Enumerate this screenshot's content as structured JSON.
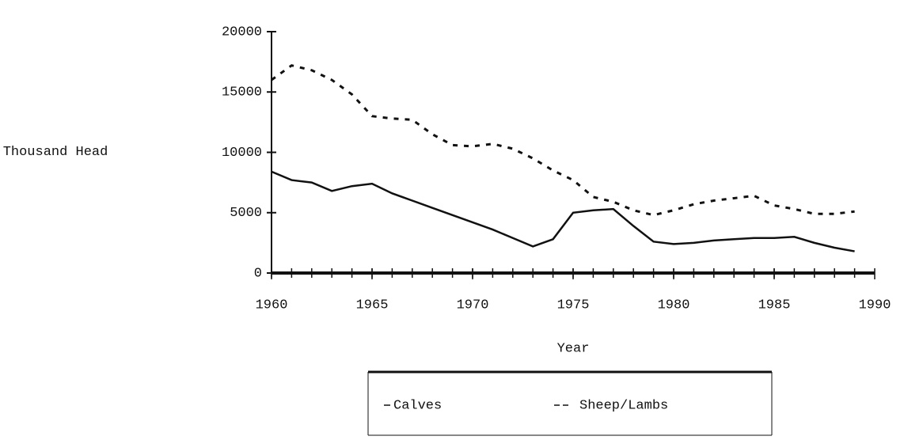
{
  "chart_data": {
    "type": "line",
    "x": [
      1960,
      1961,
      1962,
      1963,
      1964,
      1965,
      1966,
      1967,
      1968,
      1969,
      1970,
      1971,
      1972,
      1973,
      1974,
      1975,
      1976,
      1977,
      1978,
      1979,
      1980,
      1981,
      1982,
      1983,
      1984,
      1985,
      1986,
      1987,
      1988,
      1989
    ],
    "series": [
      {
        "name": "Calves",
        "color": "#111111",
        "dash": false,
        "values": [
          8400,
          7700,
          7500,
          6800,
          7200,
          7400,
          6600,
          6000,
          5400,
          4800,
          4200,
          3600,
          2900,
          2200,
          2800,
          5000,
          5200,
          5300,
          3900,
          2600,
          2400,
          2500,
          2700,
          2800,
          2900,
          2900,
          3000,
          2500,
          2100,
          1800
        ]
      },
      {
        "name": "Sheep/Lambs",
        "color": "#111111",
        "dash": true,
        "values": [
          16000,
          17200,
          16800,
          16000,
          14800,
          13000,
          12800,
          12700,
          11500,
          10600,
          10500,
          10700,
          10300,
          9500,
          8500,
          7700,
          6300,
          5900,
          5200,
          4800,
          5200,
          5700,
          6000,
          6200,
          6400,
          5600,
          5300,
          4900,
          4900,
          5100
        ]
      }
    ],
    "xlabel": "Year",
    "ylabel": "Thousand Head",
    "xlim": [
      1960,
      1990
    ],
    "xticks": [
      1960,
      1965,
      1970,
      1975,
      1980,
      1985,
      1990
    ],
    "ylim": [
      0,
      20000
    ],
    "yticks": [
      0,
      5000,
      10000,
      15000,
      20000
    ],
    "grid": false
  }
}
